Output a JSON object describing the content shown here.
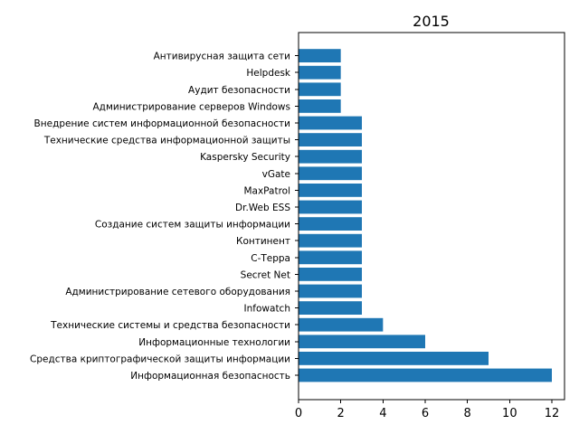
{
  "chart_data": {
    "type": "bar",
    "orientation": "horizontal",
    "title": "2015",
    "xlabel": "",
    "ylabel": "",
    "xlim": [
      0,
      12.6
    ],
    "xticks": [
      0,
      2,
      4,
      6,
      8,
      10,
      12
    ],
    "grid": false,
    "bar_color": "#1f77b4",
    "categories": [
      "Информационная безопасность",
      "Средства криптографической защиты информации",
      "Информационные технологии",
      "Технические системы и средства безопасности",
      "Infowatch",
      "Администрирование сетевого оборудования",
      "Secret Net",
      "С-Терра",
      "Континент",
      "Создание систем защиты информации",
      "Dr.Web ESS",
      "MaxPatrol",
      "vGate",
      "Kaspersky Security",
      "Технические средства информационной защиты",
      "Внедрение систем информационной безопасности",
      "Администрирование серверов Windows",
      "Аудит безопасности",
      "Helpdesk",
      "Антивирусная защита сети"
    ],
    "values": [
      12,
      9,
      6,
      4,
      3,
      3,
      3,
      3,
      3,
      3,
      3,
      3,
      3,
      3,
      3,
      3,
      2,
      2,
      2,
      2
    ]
  }
}
